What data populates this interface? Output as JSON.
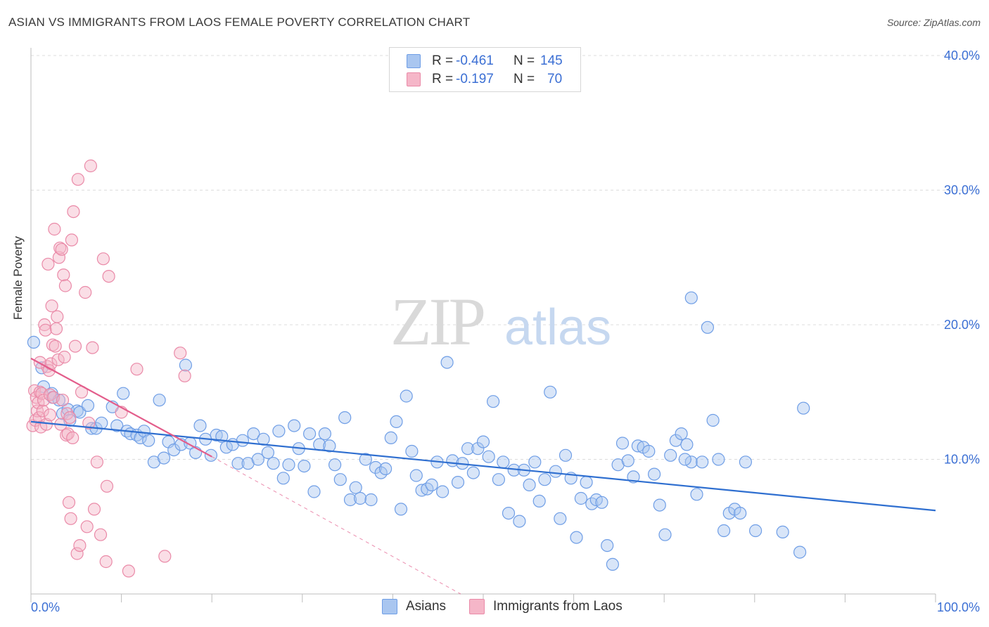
{
  "header": {
    "title": "ASIAN VS IMMIGRANTS FROM LAOS FEMALE POVERTY CORRELATION CHART",
    "source": "Source: ZipAtlas.com"
  },
  "watermark": {
    "zip": "ZIP",
    "atlas": "atlas"
  },
  "legend": {
    "series1": {
      "r_label": "R =",
      "r_value": "-0.461",
      "n_label": "N =",
      "n_value": "145"
    },
    "series2": {
      "r_label": "R =",
      "r_value": "-0.197",
      "n_label": "N =",
      "n_value": "70"
    }
  },
  "bottom_legend": {
    "series1": "Asians",
    "series2": "Immigrants from Laos"
  },
  "colors": {
    "blue_fill": "#a9c6f0",
    "blue_stroke": "#6f9ee6",
    "blue_line": "#2f6fd0",
    "pink_fill": "#f5b6c8",
    "pink_stroke": "#ea8aa8",
    "pink_line": "#e35d8b",
    "grid": "#dcdcdc",
    "axis_text": "#3b6fd4"
  },
  "chart_data": {
    "type": "scatter",
    "title": "ASIAN VS IMMIGRANTS FROM LAOS FEMALE POVERTY CORRELATION CHART",
    "xlabel": "",
    "ylabel": "Female Poverty",
    "xlim": [
      0,
      100
    ],
    "ylim": [
      0,
      40
    ],
    "x_tick_labels": [
      "0.0%",
      "100.0%"
    ],
    "y_ticks": [
      10,
      20,
      30,
      40
    ],
    "y_tick_labels": [
      "10.0%",
      "20.0%",
      "30.0%",
      "40.0%"
    ],
    "grid": true,
    "series": [
      {
        "name": "Asians",
        "r": -0.461,
        "n": 145,
        "trend": {
          "x": [
            0,
            100
          ],
          "y": [
            12.8,
            6.2
          ]
        },
        "points": [
          [
            0.3,
            18.7
          ],
          [
            1.2,
            16.8
          ],
          [
            1.4,
            15.4
          ],
          [
            2.3,
            14.9
          ],
          [
            2.4,
            14.6
          ],
          [
            3.1,
            14.4
          ],
          [
            3.5,
            13.4
          ],
          [
            4.1,
            13.7
          ],
          [
            4.3,
            12.9
          ],
          [
            5.1,
            13.6
          ],
          [
            5.4,
            13.5
          ],
          [
            6.3,
            14.0
          ],
          [
            6.7,
            12.3
          ],
          [
            7.2,
            12.3
          ],
          [
            7.8,
            12.7
          ],
          [
            9.0,
            13.9
          ],
          [
            9.5,
            12.5
          ],
          [
            10.2,
            14.9
          ],
          [
            10.6,
            12.1
          ],
          [
            11.0,
            11.9
          ],
          [
            11.7,
            11.8
          ],
          [
            12.1,
            11.6
          ],
          [
            12.5,
            12.1
          ],
          [
            13.0,
            11.4
          ],
          [
            13.6,
            9.8
          ],
          [
            14.2,
            14.4
          ],
          [
            14.7,
            10.1
          ],
          [
            15.2,
            11.3
          ],
          [
            15.8,
            10.7
          ],
          [
            16.6,
            11.1
          ],
          [
            17.1,
            17.0
          ],
          [
            17.6,
            11.2
          ],
          [
            18.2,
            10.5
          ],
          [
            18.7,
            12.5
          ],
          [
            19.3,
            11.5
          ],
          [
            19.9,
            10.3
          ],
          [
            20.5,
            11.8
          ],
          [
            21.1,
            11.7
          ],
          [
            21.6,
            10.9
          ],
          [
            22.3,
            11.1
          ],
          [
            22.9,
            9.7
          ],
          [
            23.4,
            11.4
          ],
          [
            24.0,
            9.7
          ],
          [
            24.6,
            11.9
          ],
          [
            25.1,
            10.0
          ],
          [
            25.7,
            11.5
          ],
          [
            26.2,
            10.5
          ],
          [
            26.8,
            9.7
          ],
          [
            27.4,
            12.1
          ],
          [
            27.9,
            8.6
          ],
          [
            28.5,
            9.6
          ],
          [
            29.1,
            12.5
          ],
          [
            29.6,
            10.8
          ],
          [
            30.2,
            9.5
          ],
          [
            30.8,
            11.9
          ],
          [
            31.3,
            7.6
          ],
          [
            31.9,
            11.1
          ],
          [
            32.5,
            11.9
          ],
          [
            33.0,
            11.0
          ],
          [
            33.6,
            9.6
          ],
          [
            34.2,
            8.5
          ],
          [
            34.7,
            13.1
          ],
          [
            35.3,
            7.0
          ],
          [
            35.9,
            7.9
          ],
          [
            36.4,
            7.1
          ],
          [
            37.0,
            10.0
          ],
          [
            37.6,
            7.0
          ],
          [
            38.1,
            9.4
          ],
          [
            38.7,
            9.0
          ],
          [
            39.2,
            9.3
          ],
          [
            39.8,
            11.6
          ],
          [
            40.4,
            12.8
          ],
          [
            40.9,
            6.3
          ],
          [
            41.5,
            14.7
          ],
          [
            42.1,
            10.6
          ],
          [
            42.6,
            8.8
          ],
          [
            43.2,
            7.7
          ],
          [
            43.8,
            7.8
          ],
          [
            44.3,
            8.1
          ],
          [
            44.9,
            9.8
          ],
          [
            45.5,
            7.6
          ],
          [
            46.0,
            17.2
          ],
          [
            46.6,
            9.9
          ],
          [
            47.2,
            8.3
          ],
          [
            47.7,
            9.7
          ],
          [
            48.3,
            10.8
          ],
          [
            48.9,
            9.0
          ],
          [
            49.4,
            10.8
          ],
          [
            50.0,
            11.3
          ],
          [
            50.6,
            10.2
          ],
          [
            51.1,
            14.3
          ],
          [
            51.7,
            8.5
          ],
          [
            52.2,
            9.8
          ],
          [
            52.8,
            6.0
          ],
          [
            53.4,
            9.2
          ],
          [
            54.0,
            5.4
          ],
          [
            54.5,
            9.2
          ],
          [
            55.1,
            8.1
          ],
          [
            55.7,
            9.8
          ],
          [
            56.2,
            6.9
          ],
          [
            56.8,
            8.5
          ],
          [
            57.4,
            15.0
          ],
          [
            58.0,
            9.1
          ],
          [
            58.5,
            5.6
          ],
          [
            59.1,
            10.3
          ],
          [
            59.7,
            8.6
          ],
          [
            60.3,
            4.2
          ],
          [
            60.8,
            7.1
          ],
          [
            61.4,
            8.3
          ],
          [
            62.0,
            6.7
          ],
          [
            62.5,
            7.0
          ],
          [
            63.1,
            6.8
          ],
          [
            63.7,
            3.6
          ],
          [
            64.3,
            2.2
          ],
          [
            64.9,
            9.6
          ],
          [
            65.4,
            11.2
          ],
          [
            66.0,
            9.9
          ],
          [
            66.6,
            8.7
          ],
          [
            67.1,
            11.0
          ],
          [
            67.7,
            10.9
          ],
          [
            68.3,
            10.6
          ],
          [
            68.9,
            8.9
          ],
          [
            69.5,
            6.6
          ],
          [
            70.1,
            4.4
          ],
          [
            70.7,
            10.3
          ],
          [
            71.3,
            11.4
          ],
          [
            71.9,
            11.9
          ],
          [
            72.5,
            11.1
          ],
          [
            73.0,
            9.8
          ],
          [
            73.6,
            7.4
          ],
          [
            74.2,
            9.8
          ],
          [
            74.8,
            19.8
          ],
          [
            75.4,
            12.9
          ],
          [
            76.0,
            10.0
          ],
          [
            76.6,
            4.7
          ],
          [
            77.2,
            6.0
          ],
          [
            77.8,
            6.3
          ],
          [
            78.4,
            6.0
          ],
          [
            79.0,
            9.8
          ],
          [
            80.1,
            4.7
          ],
          [
            72.3,
            10.0
          ],
          [
            83.1,
            4.6
          ],
          [
            85.0,
            3.1
          ],
          [
            85.4,
            13.8
          ],
          [
            73.0,
            22.0
          ]
        ]
      },
      {
        "name": "Immigrants from Laos",
        "r": -0.197,
        "n": 70,
        "trend": {
          "x": [
            0,
            20
          ],
          "y": [
            17.5,
            10.2
          ]
        },
        "trend_extension": {
          "x": [
            20,
            47.5
          ],
          "y": [
            10.2,
            0.0
          ]
        },
        "points": [
          [
            0.2,
            12.5
          ],
          [
            0.4,
            15.1
          ],
          [
            0.5,
            12.9
          ],
          [
            0.6,
            14.6
          ],
          [
            0.7,
            13.6
          ],
          [
            0.8,
            14.2
          ],
          [
            0.9,
            13.1
          ],
          [
            1.0,
            15.0
          ],
          [
            1.1,
            12.4
          ],
          [
            1.2,
            14.9
          ],
          [
            1.3,
            13.6
          ],
          [
            1.4,
            14.4
          ],
          [
            1.5,
            20.0
          ],
          [
            1.6,
            19.6
          ],
          [
            1.7,
            12.6
          ],
          [
            1.8,
            16.9
          ],
          [
            1.9,
            24.5
          ],
          [
            2.0,
            16.6
          ],
          [
            2.1,
            14.8
          ],
          [
            2.2,
            17.1
          ],
          [
            2.3,
            21.4
          ],
          [
            2.4,
            18.5
          ],
          [
            2.5,
            14.6
          ],
          [
            2.6,
            27.1
          ],
          [
            2.7,
            18.4
          ],
          [
            2.8,
            19.7
          ],
          [
            2.9,
            20.6
          ],
          [
            3.0,
            17.4
          ],
          [
            3.1,
            25.0
          ],
          [
            3.2,
            25.7
          ],
          [
            3.3,
            12.6
          ],
          [
            3.4,
            25.6
          ],
          [
            3.5,
            14.4
          ],
          [
            3.6,
            23.7
          ],
          [
            3.7,
            17.6
          ],
          [
            3.8,
            22.9
          ],
          [
            3.9,
            11.8
          ],
          [
            4.0,
            13.4
          ],
          [
            4.1,
            11.9
          ],
          [
            4.2,
            6.8
          ],
          [
            4.3,
            13.1
          ],
          [
            4.4,
            5.6
          ],
          [
            4.5,
            26.3
          ],
          [
            4.7,
            28.4
          ],
          [
            4.9,
            18.4
          ],
          [
            5.1,
            3.0
          ],
          [
            5.2,
            30.8
          ],
          [
            5.4,
            3.6
          ],
          [
            5.6,
            15.0
          ],
          [
            6.0,
            22.4
          ],
          [
            6.2,
            5.0
          ],
          [
            6.4,
            12.7
          ],
          [
            6.6,
            31.8
          ],
          [
            6.8,
            18.3
          ],
          [
            7.0,
            6.3
          ],
          [
            7.3,
            9.8
          ],
          [
            7.7,
            4.4
          ],
          [
            8.0,
            24.9
          ],
          [
            8.3,
            2.4
          ],
          [
            8.4,
            8.0
          ],
          [
            8.6,
            23.6
          ],
          [
            10.0,
            13.5
          ],
          [
            10.8,
            1.7
          ],
          [
            11.7,
            16.7
          ],
          [
            14.8,
            2.8
          ],
          [
            16.5,
            17.9
          ],
          [
            17.0,
            16.2
          ],
          [
            2.1,
            13.3
          ],
          [
            1.0,
            17.2
          ],
          [
            4.6,
            11.6
          ]
        ]
      }
    ]
  }
}
